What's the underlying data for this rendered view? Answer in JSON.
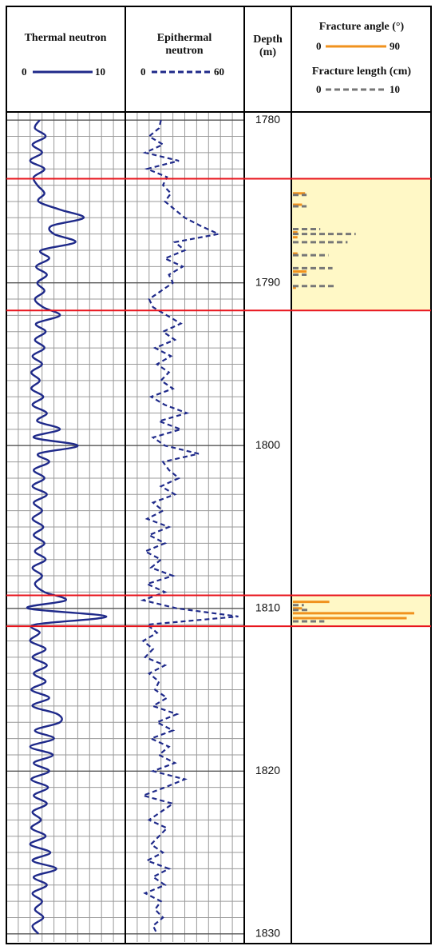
{
  "chart_data": {
    "type": "well-log",
    "ylabel": "Depth (m)",
    "ylim": [
      1779.5,
      1830.5
    ],
    "yticks": [
      1780,
      1790,
      1800,
      1810,
      1820,
      1830
    ],
    "ygrid": [
      1780,
      1781,
      1782,
      1783,
      1784,
      1785,
      1786,
      1787,
      1788,
      1789,
      1790,
      1791,
      1792,
      1793,
      1794,
      1795,
      1796,
      1797,
      1798,
      1799,
      1800,
      1801,
      1802,
      1803,
      1804,
      1805,
      1806,
      1807,
      1808,
      1809,
      1810,
      1811,
      1812,
      1813,
      1814,
      1815,
      1816,
      1817,
      1818,
      1819,
      1820,
      1821,
      1822,
      1823,
      1824,
      1825,
      1826,
      1827,
      1828,
      1829,
      1830
    ],
    "y": [
      1780,
      1780.5,
      1781,
      1781.5,
      1782,
      1782.5,
      1783,
      1783.5,
      1784,
      1784.5,
      1785,
      1785.5,
      1786,
      1786.5,
      1787,
      1787.5,
      1788,
      1788.5,
      1789,
      1789.5,
      1790,
      1790.5,
      1791,
      1791.5,
      1792,
      1792.5,
      1793,
      1793.5,
      1794,
      1794.5,
      1795,
      1795.5,
      1796,
      1796.5,
      1797,
      1797.5,
      1798,
      1798.5,
      1799,
      1799.5,
      1800,
      1800.5,
      1801,
      1801.5,
      1802,
      1802.5,
      1803,
      1803.5,
      1804,
      1804.5,
      1805,
      1805.5,
      1806,
      1806.5,
      1807,
      1807.5,
      1808,
      1808.5,
      1809,
      1809.5,
      1810,
      1810.5,
      1811,
      1811.5,
      1812,
      1812.5,
      1813,
      1813.5,
      1814,
      1814.5,
      1815,
      1815.5,
      1816,
      1816.5,
      1817,
      1817.5,
      1818,
      1818.5,
      1819,
      1819.5,
      1820,
      1820.5,
      1821,
      1821.5,
      1822,
      1822.5,
      1823,
      1823.5,
      1824,
      1824.5,
      1825,
      1825.5,
      1826,
      1826.5,
      1827,
      1827.5,
      1828,
      1828.5,
      1829,
      1829.5,
      1830
    ],
    "curves": [
      {
        "name": "Thermal neutron",
        "color": "#1f2a8a",
        "dash": false,
        "xlim": [
          0,
          10
        ],
        "xticks": [
          0,
          1,
          2,
          3,
          4,
          5,
          6,
          7,
          8,
          9,
          10
        ],
        "values": [
          2.8,
          2.4,
          3.3,
          2.2,
          3.0,
          2.0,
          3.2,
          2.3,
          2.6,
          3.2,
          2.7,
          4.5,
          6.5,
          3.8,
          4.0,
          5.8,
          2.9,
          3.6,
          2.5,
          3.4,
          2.6,
          3.2,
          2.4,
          3.1,
          4.5,
          2.5,
          3.3,
          2.4,
          3.2,
          2.2,
          3.0,
          2.1,
          2.8,
          2.1,
          3.1,
          2.2,
          3.4,
          2.6,
          4.5,
          2.3,
          6.0,
          2.7,
          3.6,
          2.3,
          3.2,
          2.2,
          3.4,
          2.3,
          3.0,
          2.2,
          3.1,
          2.3,
          3.2,
          2.4,
          3.3,
          2.2,
          3.0,
          2.4,
          3.2,
          5.0,
          1.8,
          8.4,
          2.4,
          2.8,
          2.0,
          3.3,
          2.2,
          3.4,
          2.3,
          3.3,
          2.1,
          3.6,
          2.2,
          4.3,
          4.5,
          2.4,
          4.0,
          2.0,
          3.9,
          2.3,
          3.6,
          2.1,
          3.5,
          2.3,
          3.4,
          2.2,
          2.9,
          2.1,
          3.3,
          2.0,
          3.7,
          2.2,
          4.2,
          2.3,
          3.4,
          2.2,
          3.0,
          2.4,
          3.1,
          2.2,
          2.7
        ]
      },
      {
        "name": "Epithermal neutron",
        "color": "#1f2a8a",
        "dash": true,
        "xlim": [
          0,
          60
        ],
        "xticks": [
          0,
          6,
          12,
          18,
          24,
          30,
          36,
          42,
          48,
          54,
          60
        ],
        "values": [
          18,
          17,
          12,
          19,
          10,
          27,
          11,
          21,
          19,
          23,
          20,
          25,
          30,
          38,
          47,
          25,
          30,
          20,
          29,
          22,
          24,
          18,
          12,
          14,
          21,
          28,
          19,
          25,
          15,
          23,
          16,
          22,
          18,
          24,
          13,
          20,
          31,
          17,
          28,
          14,
          20,
          37,
          19,
          22,
          27,
          18,
          25,
          14,
          19,
          11,
          22,
          12,
          20,
          10,
          18,
          13,
          24,
          11,
          20,
          9,
          26,
          57,
          11,
          16,
          9,
          14,
          10,
          20,
          12,
          17,
          15,
          21,
          14,
          26,
          16,
          24,
          13,
          22,
          17,
          25,
          14,
          30,
          20,
          9,
          24,
          18,
          12,
          21,
          17,
          13,
          19,
          11,
          22,
          14,
          20,
          10,
          18,
          15,
          19,
          14,
          16
        ]
      }
    ],
    "fractures": [
      {
        "name": "Fracture angle (°)",
        "color": "#f0921e",
        "dash": false,
        "xlim": [
          0,
          90
        ],
        "y": [
          1784.5,
          1785.2,
          1786.9,
          1787.2,
          1788.2,
          1789.3,
          1790.3,
          1809.6,
          1810.0,
          1810.3,
          1810.6
        ],
        "values": [
          8,
          6,
          3,
          3,
          3,
          9,
          2,
          24,
          6,
          80,
          75
        ]
      },
      {
        "name": "Fracture length (cm)",
        "color": "#777777",
        "dash": true,
        "xlim": [
          0,
          10
        ],
        "y": [
          1784.6,
          1785.3,
          1786.7,
          1787.0,
          1787.5,
          1788.3,
          1789.1,
          1789.5,
          1790.2,
          1809.8,
          1810.1,
          1810.8
        ],
        "values": [
          1,
          1,
          2,
          4.6,
          4,
          2.6,
          2.9,
          1,
          3.2,
          0.8,
          1.2,
          2.3
        ]
      }
    ],
    "zones": [
      {
        "top": 1783.6,
        "bottom": 1791.7
      },
      {
        "top": 1809.2,
        "bottom": 1811.1
      }
    ],
    "zone_fill": "#fff8c6",
    "zone_line_color": "#e8141c"
  }
}
